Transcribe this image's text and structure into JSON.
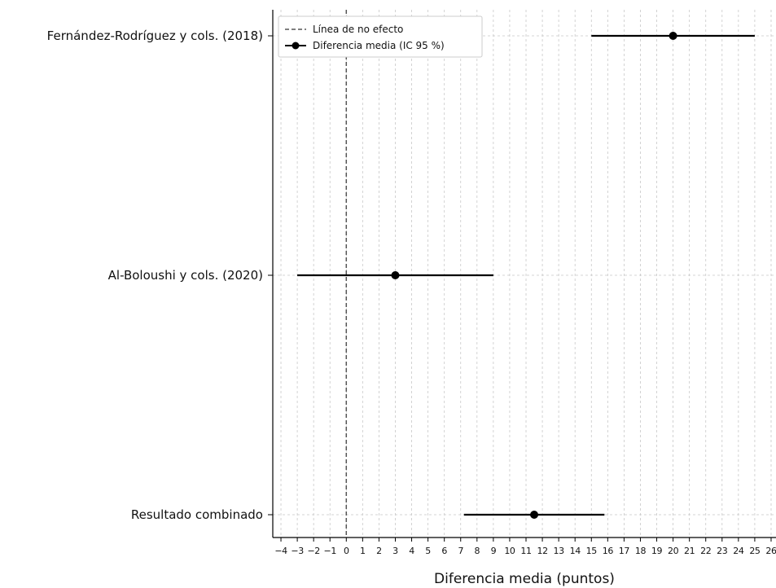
{
  "chart_data": {
    "type": "forest",
    "xlabel": "Diferencia media (puntos)",
    "xlim": [
      -4.5,
      26.3
    ],
    "x_ticks": [
      -4,
      -3,
      -2,
      -1,
      0,
      1,
      2,
      3,
      4,
      5,
      6,
      7,
      8,
      9,
      10,
      11,
      12,
      13,
      14,
      15,
      16,
      17,
      18,
      19,
      20,
      21,
      22,
      23,
      24,
      25,
      26
    ],
    "grid": true,
    "no_effect_line": 0,
    "legend": {
      "placement": "top-left",
      "entries": [
        "Línea de no efecto",
        "Diferencia media (IC 95 %)"
      ]
    },
    "studies": [
      {
        "label": "Fernández-Rodríguez y cols. (2018)",
        "mean": 20,
        "ci_low": 15,
        "ci_high": 25
      },
      {
        "label": "Al-Boloushi y cols. (2020)",
        "mean": 3,
        "ci_low": -3,
        "ci_high": 9
      },
      {
        "label": "Resultado combinado",
        "mean": 11.5,
        "ci_low": 7.2,
        "ci_high": 15.8
      }
    ]
  }
}
